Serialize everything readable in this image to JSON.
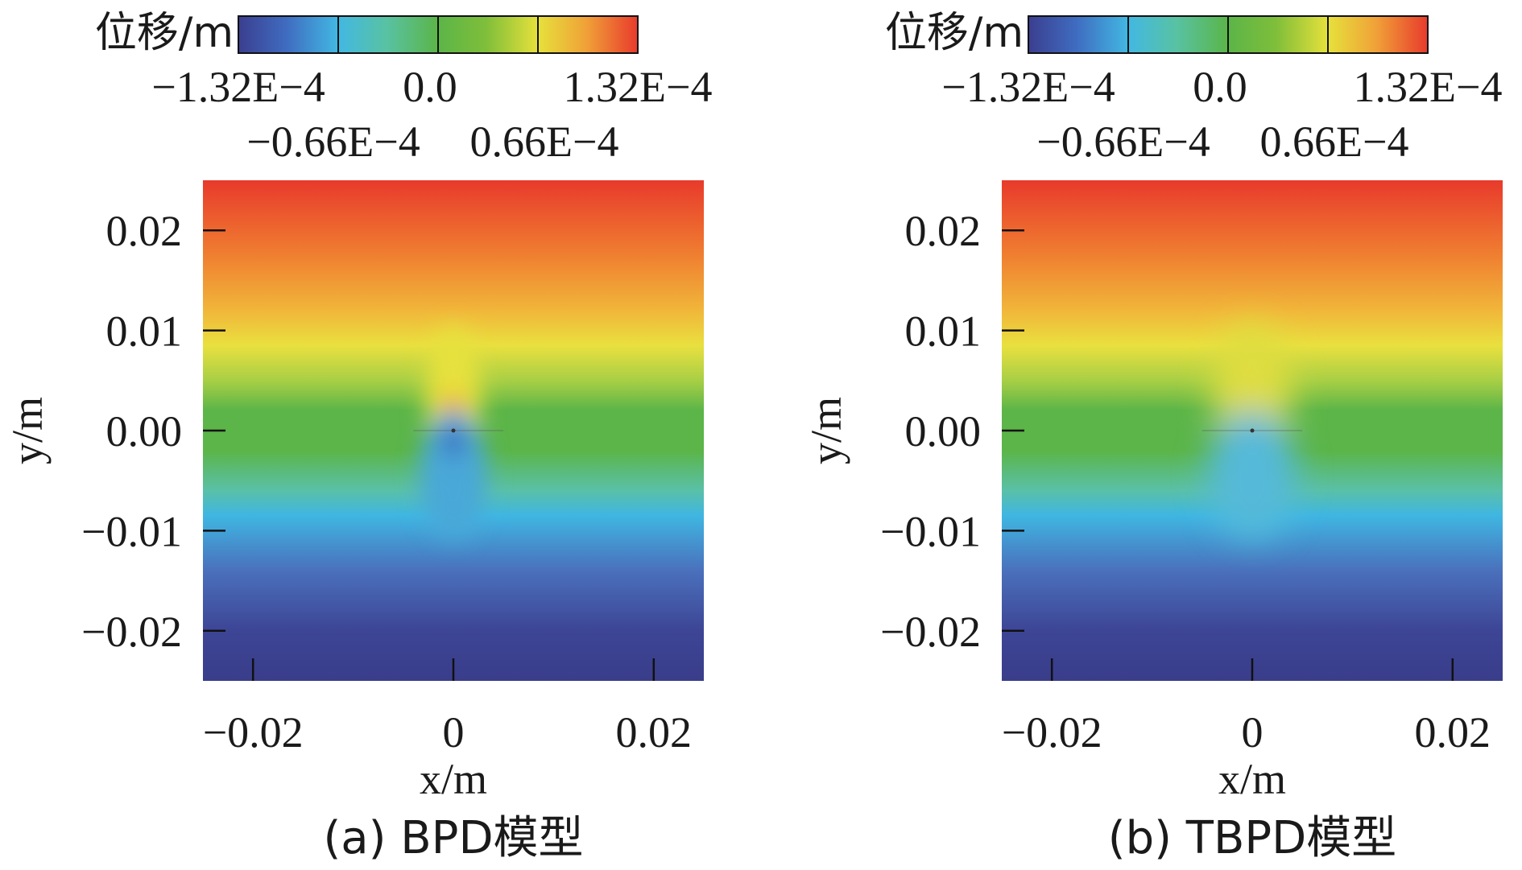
{
  "chart_data": [
    {
      "type": "heatmap",
      "panel_label": "(a) BPD模型",
      "model": "BPD",
      "colorbar": {
        "title": "位移/m",
        "range": [
          -0.000132,
          0.000132
        ],
        "ticks": [
          -0.000132,
          -6.6e-05,
          0.0,
          6.6e-05,
          0.000132
        ],
        "tick_labels_row1": [
          "−1.32E−4",
          "0.0",
          "1.32E−4"
        ],
        "tick_labels_row2": [
          "−0.66E−4",
          "0.66E−4"
        ],
        "colormap": [
          "#3b3e8f",
          "#3f6cc0",
          "#42b8e3",
          "#58c2a3",
          "#5bb548",
          "#7fbe3a",
          "#e6e13b",
          "#f0a238",
          "#e83a2c"
        ]
      },
      "xlabel": "x/m",
      "ylabel": "y/m",
      "xlim": [
        -0.025,
        0.025
      ],
      "ylim": [
        -0.025,
        0.025
      ],
      "xticks": [
        -0.02,
        0,
        0.02
      ],
      "xtick_labels": [
        "−0.02",
        "0",
        "0.02"
      ],
      "yticks": [
        0.02,
        0.01,
        0.0,
        -0.01,
        -0.02
      ],
      "ytick_labels": [
        "0.02",
        "0.01",
        "0.00",
        "−0.01",
        "−0.02"
      ],
      "crack": {
        "x_start": -0.004,
        "x_end": 0.005,
        "y": 0.0
      },
      "notes": "vertical displacement field; lobes near crack"
    },
    {
      "type": "heatmap",
      "panel_label": "(b) TBPD模型",
      "model": "TBPD",
      "colorbar": {
        "title": "位移/m",
        "range": [
          -0.000132,
          0.000132
        ],
        "ticks": [
          -0.000132,
          -6.6e-05,
          0.0,
          6.6e-05,
          0.000132
        ],
        "tick_labels_row1": [
          "−1.32E−4",
          "0.0",
          "1.32E−4"
        ],
        "tick_labels_row2": [
          "−0.66E−4",
          "0.66E−4"
        ],
        "colormap": [
          "#3b3e8f",
          "#3f6cc0",
          "#42b8e3",
          "#58c2a3",
          "#5bb548",
          "#7fbe3a",
          "#e6e13b",
          "#f0a238",
          "#e83a2c"
        ]
      },
      "xlabel": "x/m",
      "ylabel": "y/m",
      "xlim": [
        -0.025,
        0.025
      ],
      "ylim": [
        -0.025,
        0.025
      ],
      "xticks": [
        -0.02,
        0,
        0.02
      ],
      "xtick_labels": [
        "−0.02",
        "0",
        "0.02"
      ],
      "yticks": [
        0.02,
        0.01,
        0.0,
        -0.01,
        -0.02
      ],
      "ytick_labels": [
        "0.02",
        "0.01",
        "0.00",
        "−0.01",
        "−0.02"
      ],
      "crack": {
        "x_start": -0.005,
        "x_end": 0.005,
        "y": 0.0
      },
      "notes": "vertical displacement field; smoother near crack"
    }
  ]
}
